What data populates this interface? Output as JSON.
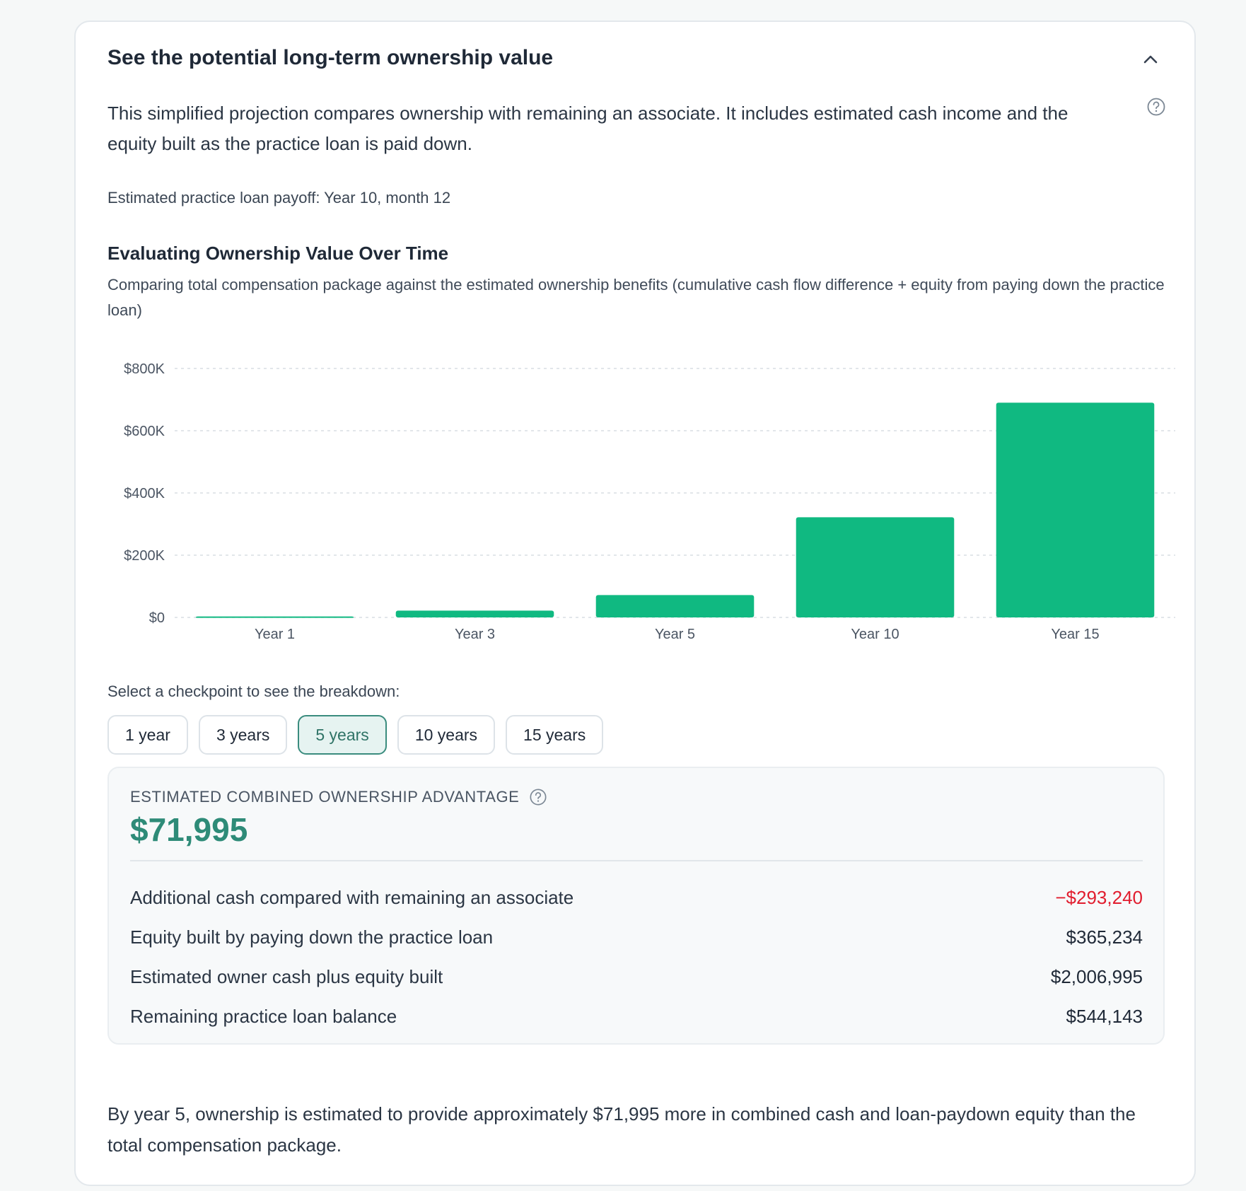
{
  "header": {
    "title": "See the potential long-term ownership value"
  },
  "intro": {
    "description": "This simplified projection compares ownership with remaining an associate. It includes estimated cash income and the equity built as the practice loan is paid down.",
    "payoff": "Estimated practice loan payoff: Year 10, month 12"
  },
  "chart_data": {
    "type": "bar",
    "title": "Evaluating Ownership Value Over Time",
    "subtitle": "Comparing total compensation package against the estimated ownership benefits (cumulative cash flow difference + equity from paying down the practice loan)",
    "categories": [
      "Year 1",
      "Year 3",
      "Year 5",
      "Year 10",
      "Year 15"
    ],
    "values": [
      3000,
      22000,
      71995,
      322000,
      690000
    ],
    "ylim": [
      0,
      800000
    ],
    "yticks": [
      0,
      200000,
      400000,
      600000,
      800000
    ],
    "ytick_labels": [
      "$0",
      "$200K",
      "$400K",
      "$600K",
      "$800K"
    ],
    "xlabel": "",
    "ylabel": "",
    "grid": true,
    "bar_color": "#10b981",
    "grid_color": "#d9dee3"
  },
  "checkpoints": {
    "label": "Select a checkpoint to see the breakdown:",
    "options": [
      "1 year",
      "3 years",
      "5 years",
      "10 years",
      "15 years"
    ],
    "selected_index": 2
  },
  "breakdown": {
    "label": "ESTIMATED COMBINED OWNERSHIP ADVANTAGE",
    "amount": "$71,995",
    "rows": [
      {
        "label": "Additional cash compared with remaining an associate",
        "value": "−$293,240",
        "negative": true
      },
      {
        "label": "Equity built by paying down the practice loan",
        "value": "$365,234",
        "negative": false
      },
      {
        "label": "Estimated owner cash plus equity built",
        "value": "$2,006,995",
        "negative": false
      },
      {
        "label": "Remaining practice loan balance",
        "value": "$544,143",
        "negative": false
      }
    ]
  },
  "footer": {
    "summary": "By year 5, ownership is estimated to provide approximately $71,995 more in combined cash and loan-paydown equity than the total compensation package."
  },
  "colors": {
    "accent": "#2e8b78",
    "negative": "#e11d2e",
    "bar": "#10b981"
  },
  "icons": {
    "collapse": "chevron-up-icon",
    "help": "help-circle-icon"
  }
}
